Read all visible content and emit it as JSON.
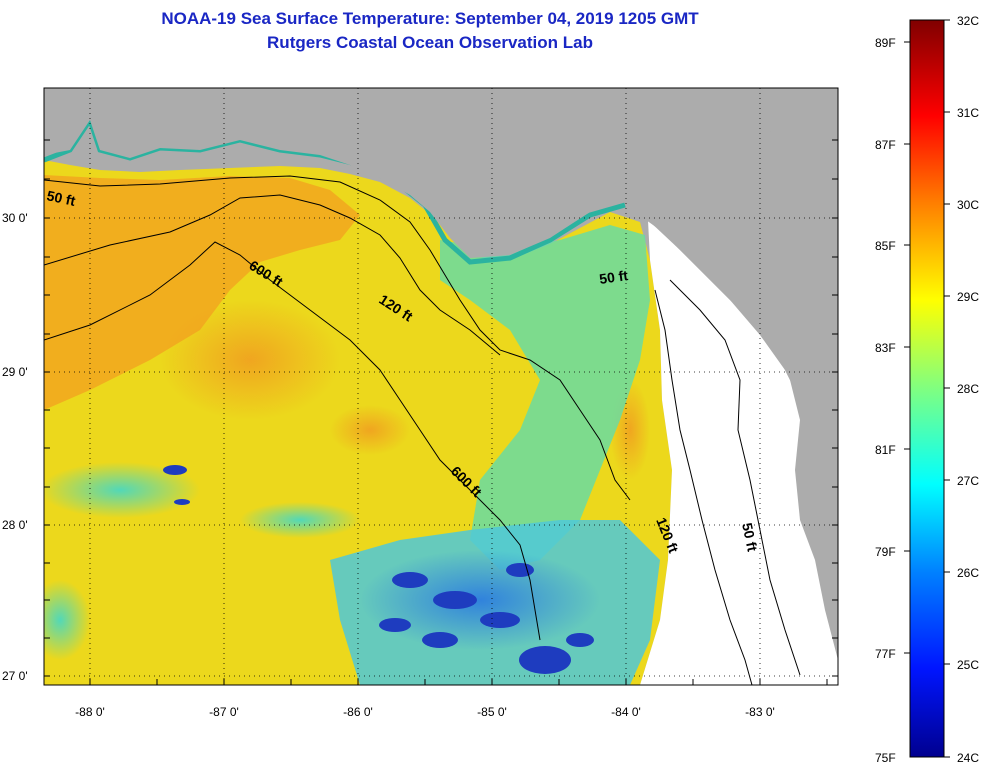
{
  "title": {
    "line1": "NOAA-19 Sea Surface Temperature:  September 04, 2019 1205 GMT",
    "line2": "Rutgers Coastal Ocean Observation Lab"
  },
  "axes": {
    "lon_labels": [
      "-88 0'",
      "-87 0'",
      "-86 0'",
      "-85 0'",
      "-84 0'",
      "-83 0'"
    ],
    "lat_labels": [
      "30 0'",
      "29 0'",
      "28 0'",
      "27 0'"
    ]
  },
  "contours": {
    "d50_left": "50 ft",
    "d600_upper": "600 ft",
    "d120_upper": "120 ft",
    "d50_right": "50 ft",
    "d600_lower": "600 ft",
    "d120_lower": "120 ft",
    "d50_lower": "50 ft"
  },
  "colorbar": {
    "celsius": [
      "32C",
      "31C",
      "30C",
      "29C",
      "28C",
      "27C",
      "26C",
      "25C",
      "24C"
    ],
    "fahrenheit": [
      "89F",
      "87F",
      "85F",
      "83F",
      "81F",
      "79F",
      "77F",
      "75F"
    ]
  },
  "colors": {
    "land": "#acacac",
    "no_data": "#ffffff",
    "title": "#1a27c4",
    "warm_water": "#f2a71f",
    "mid_water": "#ecd81c",
    "cool_water": "#62dcaa",
    "cold_water": "#1e3cbf"
  }
}
